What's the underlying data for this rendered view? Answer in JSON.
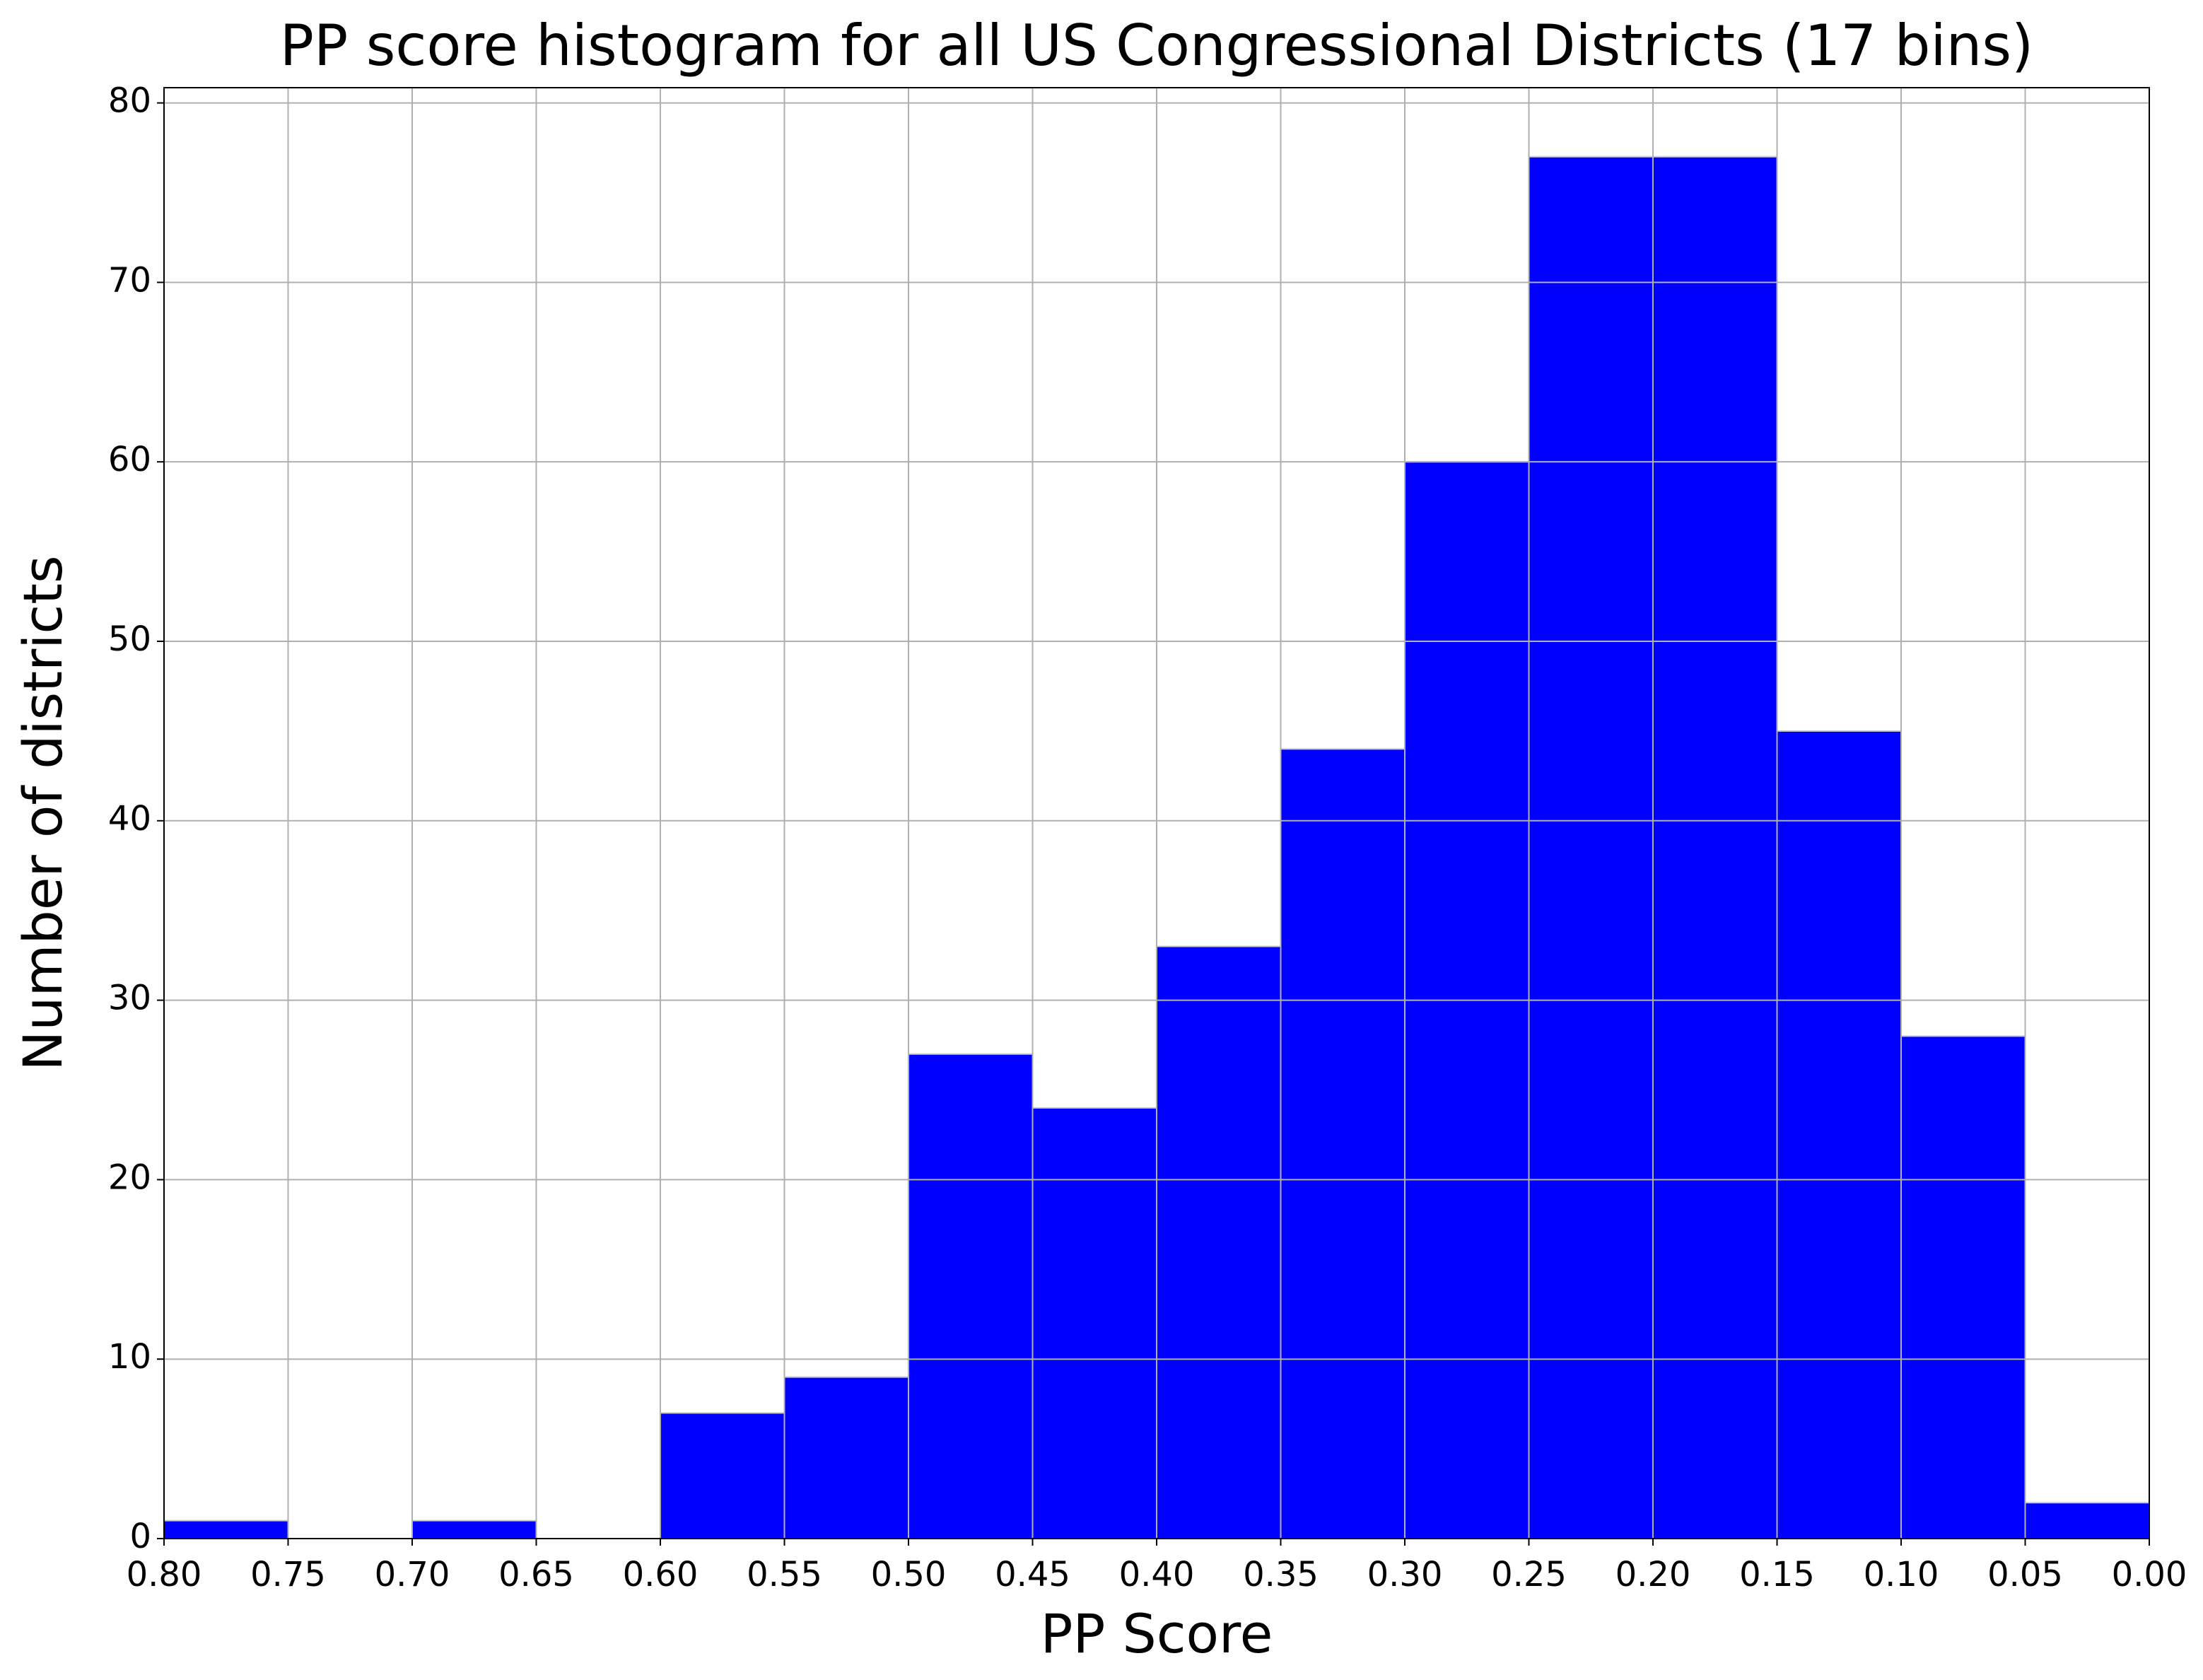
{
  "chart_data": {
    "type": "histogram",
    "title": "PP score histogram for all US Congressional Districts (17 bins)",
    "xlabel": "PP Score",
    "ylabel": "Number of districts",
    "bins": [
      0,
      0.05,
      0.1,
      0.15,
      0.2,
      0.25,
      0.3,
      0.35,
      0.4,
      0.45,
      0.5,
      0.55,
      0.6,
      0.65,
      0.7,
      0.75,
      0.8
    ],
    "counts": [
      2,
      28,
      45,
      77,
      77,
      60,
      44,
      33,
      24,
      27,
      9,
      7,
      0,
      1,
      0,
      1
    ],
    "color": "#0000ff",
    "edgecolor": "#c8c8c8",
    "xlim": [
      0.8,
      0
    ],
    "xticks": [
      {
        "value": 0.8,
        "label": "0.80"
      },
      {
        "value": 0.75,
        "label": "0.75"
      },
      {
        "value": 0.7,
        "label": "0.70"
      },
      {
        "value": 0.65,
        "label": "0.65"
      },
      {
        "value": 0.6,
        "label": "0.60"
      },
      {
        "value": 0.55,
        "label": "0.55"
      },
      {
        "value": 0.5,
        "label": "0.50"
      },
      {
        "value": 0.45,
        "label": "0.45"
      },
      {
        "value": 0.4,
        "label": "0.40"
      },
      {
        "value": 0.35,
        "label": "0.35"
      },
      {
        "value": 0.3,
        "label": "0.30"
      },
      {
        "value": 0.25,
        "label": "0.25"
      },
      {
        "value": 0.2,
        "label": "0.20"
      },
      {
        "value": 0.15,
        "label": "0.15"
      },
      {
        "value": 0.1,
        "label": "0.10"
      },
      {
        "value": 0.05,
        "label": "0.05"
      },
      {
        "value": 0,
        "label": "0.00"
      }
    ],
    "ylim": [
      0,
      80.85
    ],
    "yticks": [
      0,
      10,
      20,
      30,
      40,
      50,
      60,
      70,
      80
    ],
    "grid": true
  }
}
